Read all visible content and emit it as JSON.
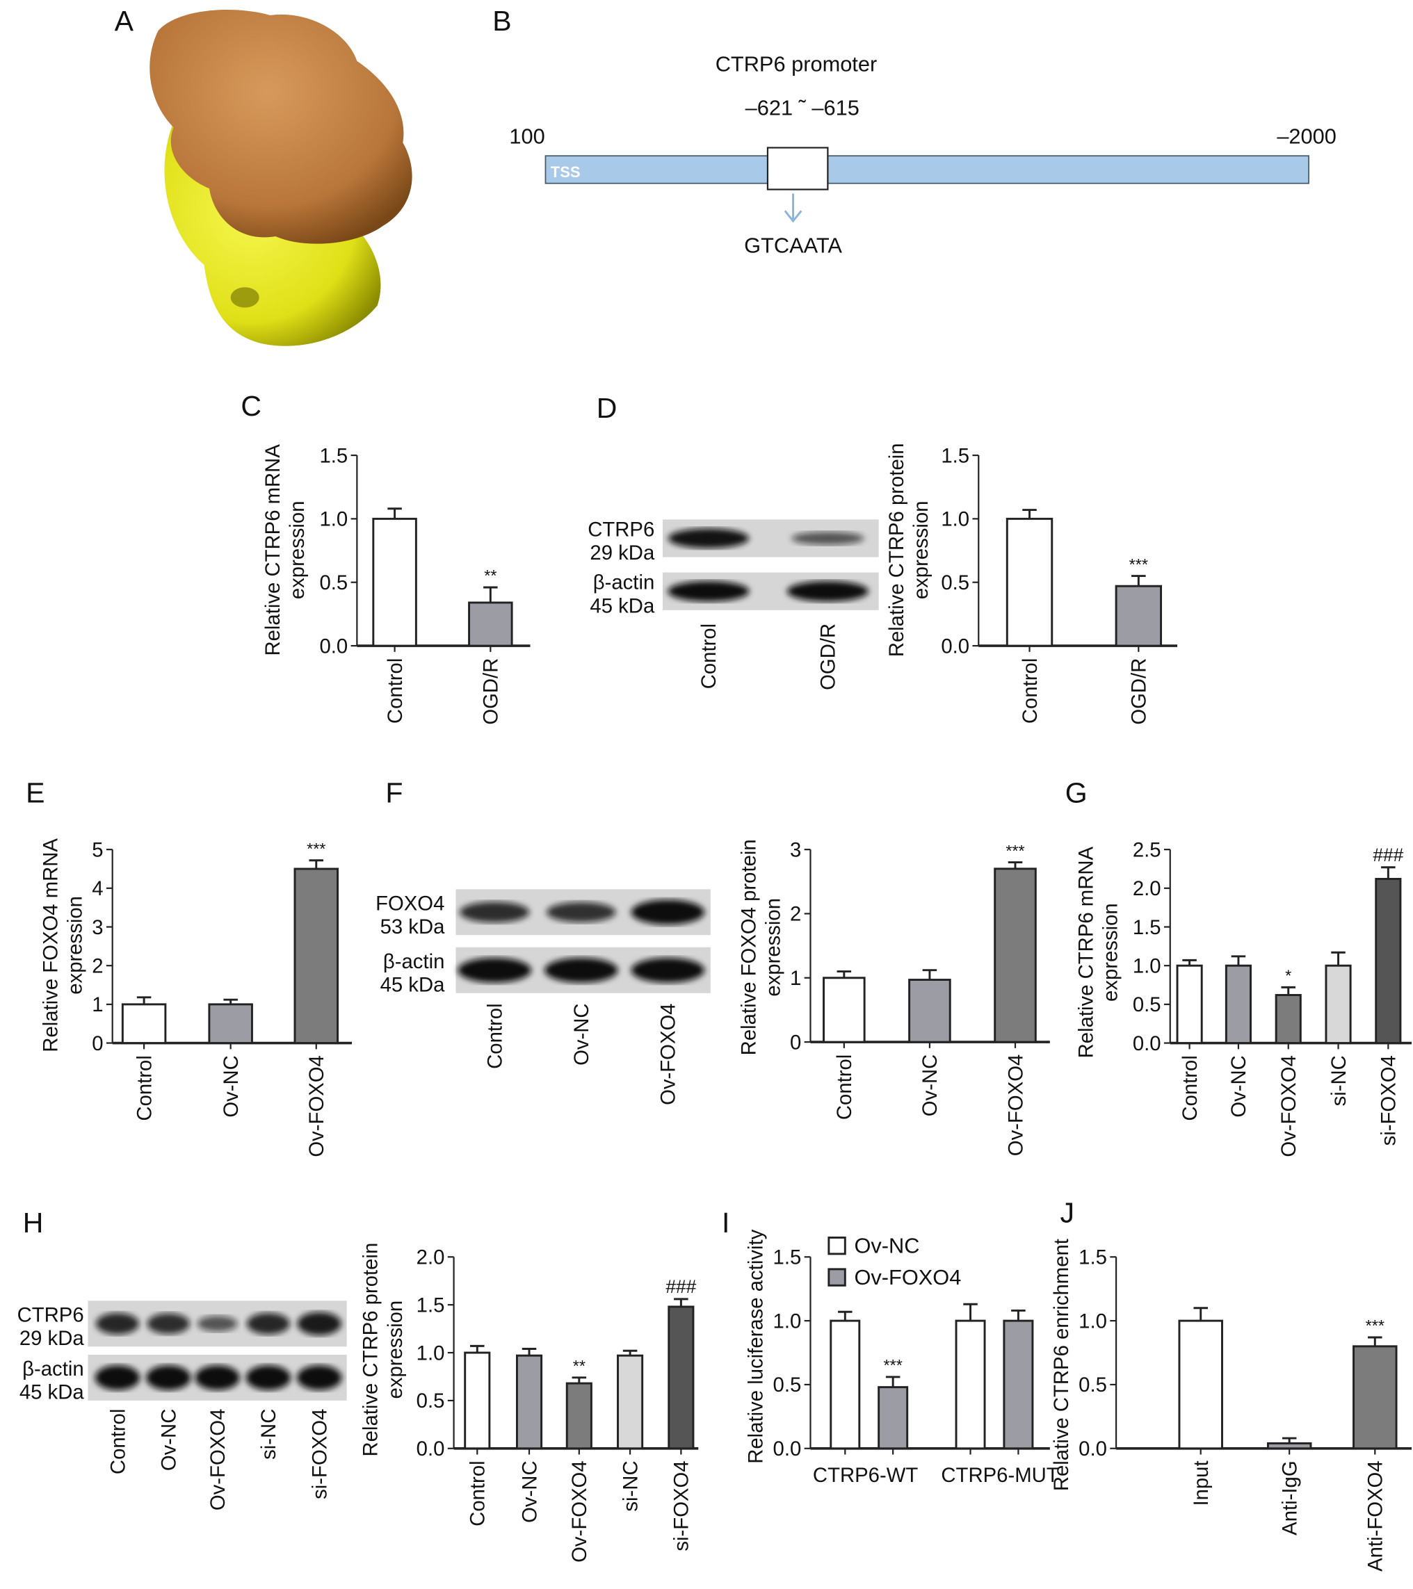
{
  "panel_letters": {
    "A": "A",
    "B": "B",
    "C": "C",
    "D": "D",
    "E": "E",
    "F": "F",
    "G": "G",
    "H": "H",
    "I": "I",
    "J": "J"
  },
  "colors": {
    "protein_top": "#b8763a",
    "protein_bottom": "#e6e61e",
    "promoter_bar": "#a9c9e8",
    "arrow": "#8ab4dc"
  },
  "promoter": {
    "title": "CTRP6 promoter",
    "site_range": "–621 ˜ –615",
    "left_pos": "100",
    "right_pos": "–2000",
    "tss": "TSS",
    "motif": "GTCAATA"
  },
  "blots": {
    "D": {
      "rows": [
        {
          "name": "CTRP6",
          "kda": "29 kDa",
          "bands": [
            0.95,
            0.45
          ]
        },
        {
          "name": "β-actin",
          "kda": "45 kDa",
          "bands": [
            1,
            1
          ]
        }
      ],
      "lanes": [
        "Control",
        "OGD/R"
      ]
    },
    "F": {
      "rows": [
        {
          "name": "FOXO4",
          "kda": "53 kDa",
          "bands": [
            0.75,
            0.72,
            1
          ]
        },
        {
          "name": "β-actin",
          "kda": "45 kDa",
          "bands": [
            1,
            1,
            1
          ]
        }
      ],
      "lanes": [
        "Control",
        "Ov-NC",
        "Ov-FOXO4"
      ]
    },
    "H": {
      "rows": [
        {
          "name": "CTRP6",
          "kda": "29 kDa",
          "bands": [
            0.8,
            0.75,
            0.45,
            0.8,
            0.9
          ]
        },
        {
          "name": "β-actin",
          "kda": "45 kDa",
          "bands": [
            1,
            1,
            1,
            1,
            1
          ]
        }
      ],
      "lanes": [
        "Control",
        "Ov-NC",
        "Ov-FOXO4",
        "si-NC",
        "si-FOXO4"
      ]
    }
  },
  "chart_data": [
    {
      "id": "C",
      "type": "bar",
      "ylabel": [
        "Relative CTRP6 mRNA",
        "expression"
      ],
      "ylim": [
        0,
        1.5
      ],
      "ticks": [
        "0.0",
        "0.5",
        "1.0",
        "1.5"
      ],
      "categories": [
        "Control",
        "OGD/R"
      ],
      "values": [
        1.0,
        0.34
      ],
      "errors": [
        0.08,
        0.12
      ],
      "annotations": [
        "",
        "**"
      ],
      "colors": [
        "#ffffff",
        "#9c9ca4"
      ]
    },
    {
      "id": "D",
      "type": "bar",
      "ylabel": [
        "Relative CTRP6 protein",
        "expression"
      ],
      "ylim": [
        0,
        1.5
      ],
      "ticks": [
        "0.0",
        "0.5",
        "1.0",
        "1.5"
      ],
      "categories": [
        "Control",
        "OGD/R"
      ],
      "values": [
        1.0,
        0.47
      ],
      "errors": [
        0.07,
        0.08
      ],
      "annotations": [
        "",
        "***"
      ],
      "colors": [
        "#ffffff",
        "#9c9ca4"
      ]
    },
    {
      "id": "E",
      "type": "bar",
      "ylabel": [
        "Relative FOXO4 mRNA",
        "expression"
      ],
      "ylim": [
        0,
        5
      ],
      "ticks": [
        "0",
        "1",
        "2",
        "3",
        "4",
        "5"
      ],
      "categories": [
        "Control",
        "Ov-NC",
        "Ov-FOXO4"
      ],
      "values": [
        1.0,
        1.0,
        4.5
      ],
      "errors": [
        0.18,
        0.12,
        0.22
      ],
      "annotations": [
        "",
        "",
        "***"
      ],
      "colors": [
        "#ffffff",
        "#9c9ca4",
        "#7c7c7c"
      ]
    },
    {
      "id": "F",
      "type": "bar",
      "ylabel": [
        "Relative FOXO4 protein",
        "expression"
      ],
      "ylim": [
        0,
        3
      ],
      "ticks": [
        "0",
        "1",
        "2",
        "3"
      ],
      "categories": [
        "Control",
        "Ov-NC",
        "Ov-FOXO4"
      ],
      "values": [
        1.0,
        0.97,
        2.7
      ],
      "errors": [
        0.1,
        0.15,
        0.1
      ],
      "annotations": [
        "",
        "",
        "***"
      ],
      "colors": [
        "#ffffff",
        "#9c9ca4",
        "#7c7c7c"
      ]
    },
    {
      "id": "G",
      "type": "bar",
      "ylabel": [
        "Relative CTRP6 mRNA",
        "expression"
      ],
      "ylim": [
        0,
        2.5
      ],
      "ticks": [
        "0.0",
        "0.5",
        "1.0",
        "1.5",
        "2.0",
        "2.5"
      ],
      "categories": [
        "Control",
        "Ov-NC",
        "Ov-FOXO4",
        "si-NC",
        "si-FOXO4"
      ],
      "values": [
        1.0,
        1.0,
        0.62,
        1.0,
        2.12
      ],
      "errors": [
        0.07,
        0.12,
        0.1,
        0.17,
        0.15
      ],
      "annotations": [
        "",
        "",
        "*",
        "",
        "###"
      ],
      "colors": [
        "#ffffff",
        "#9c9ca4",
        "#7c7c7c",
        "#d8d8d8",
        "#555555"
      ]
    },
    {
      "id": "H",
      "type": "bar",
      "ylabel": [
        "Relative CTRP6 protein",
        "expression"
      ],
      "ylim": [
        0,
        2
      ],
      "ticks": [
        "0.0",
        "0.5",
        "1.0",
        "1.5",
        "2.0"
      ],
      "categories": [
        "Control",
        "Ov-NC",
        "Ov-FOXO4",
        "si-NC",
        "si-FOXO4"
      ],
      "values": [
        1.0,
        0.97,
        0.68,
        0.97,
        1.48
      ],
      "errors": [
        0.07,
        0.07,
        0.06,
        0.05,
        0.08
      ],
      "annotations": [
        "",
        "",
        "**",
        "",
        "###"
      ],
      "colors": [
        "#ffffff",
        "#9c9ca4",
        "#7c7c7c",
        "#d8d8d8",
        "#555555"
      ]
    },
    {
      "id": "I",
      "type": "bar",
      "ylabel": [
        "Relative luciferase activity"
      ],
      "ylim": [
        0,
        1.5
      ],
      "ticks": [
        "0.0",
        "0.5",
        "1.0",
        "1.5"
      ],
      "groups": [
        "CTRP6-WT",
        "CTRP6-MUT"
      ],
      "legend": [
        {
          "name": "Ov-NC",
          "color": "#ffffff"
        },
        {
          "name": "Ov-FOXO4",
          "color": "#9c9ca4"
        }
      ],
      "legend_position": "top-left",
      "categories": [
        "CTRP6-WT Ov-NC",
        "CTRP6-WT Ov-FOXO4",
        "CTRP6-MUT Ov-NC",
        "CTRP6-MUT Ov-FOXO4"
      ],
      "values": [
        1.0,
        0.48,
        1.0,
        1.0
      ],
      "errors": [
        0.07,
        0.08,
        0.13,
        0.08
      ],
      "annotations": [
        "",
        "***",
        "",
        ""
      ],
      "colors": [
        "#ffffff",
        "#9c9ca4",
        "#ffffff",
        "#9c9ca4"
      ]
    },
    {
      "id": "J",
      "type": "bar",
      "ylabel": [
        "Relative CTRP6 enrichment"
      ],
      "ylim": [
        0,
        1.5
      ],
      "ticks": [
        "0.0",
        "0.5",
        "1.0",
        "1.5"
      ],
      "categories": [
        "Input",
        "Anti-IgG",
        "Anti-FOXO4"
      ],
      "values": [
        1.0,
        0.04,
        0.8
      ],
      "errors": [
        0.1,
        0.04,
        0.07
      ],
      "annotations": [
        "",
        "",
        "***"
      ],
      "colors": [
        "#ffffff",
        "#9c9ca4",
        "#7c7c7c"
      ]
    }
  ]
}
